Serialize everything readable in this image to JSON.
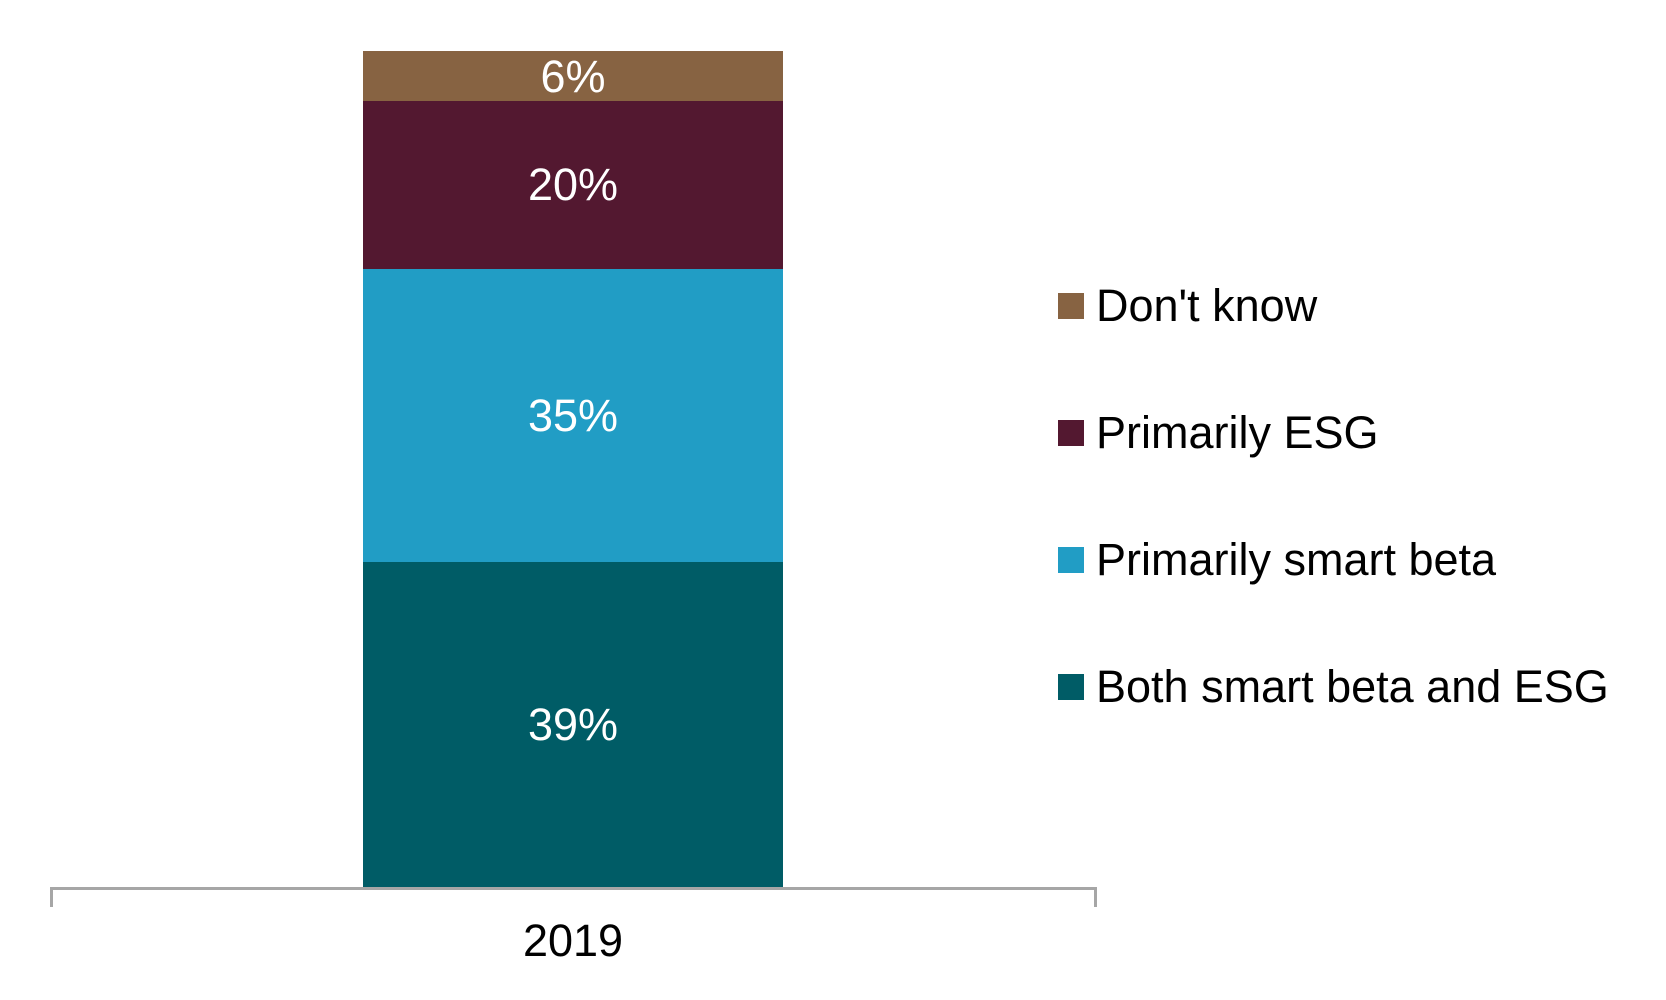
{
  "chart_data": {
    "type": "bar",
    "stacked": true,
    "orientation": "vertical",
    "categories": [
      "2019"
    ],
    "series": [
      {
        "name": "Don't know",
        "values": [
          6
        ],
        "data_label": "6%",
        "color": "#876342"
      },
      {
        "name": "Primarily ESG",
        "values": [
          20
        ],
        "data_label": "20%",
        "color": "#531830"
      },
      {
        "name": "Primarily smart beta",
        "values": [
          35
        ],
        "data_label": "35%",
        "color": "#219dc5"
      },
      {
        "name": "Both smart beta and ESG",
        "values": [
          39
        ],
        "data_label": "39%",
        "color": "#005c66"
      }
    ],
    "value_format": "percent",
    "ylim": [
      0,
      100
    ],
    "grid": false,
    "y_axis_visible": false,
    "legend_position": "right",
    "axis_color": "#a6a6a6",
    "data_label_color": "#ffffff",
    "title": "",
    "xlabel": "",
    "ylabel": ""
  },
  "x_axis": {
    "tick_label": "2019"
  },
  "legend": {
    "items": [
      {
        "label": "Don't know",
        "color": "#876342"
      },
      {
        "label": "Primarily ESG",
        "color": "#531830"
      },
      {
        "label": "Primarily smart beta",
        "color": "#219dc5"
      },
      {
        "label": "Both smart beta and ESG",
        "color": "#005c66"
      }
    ]
  }
}
